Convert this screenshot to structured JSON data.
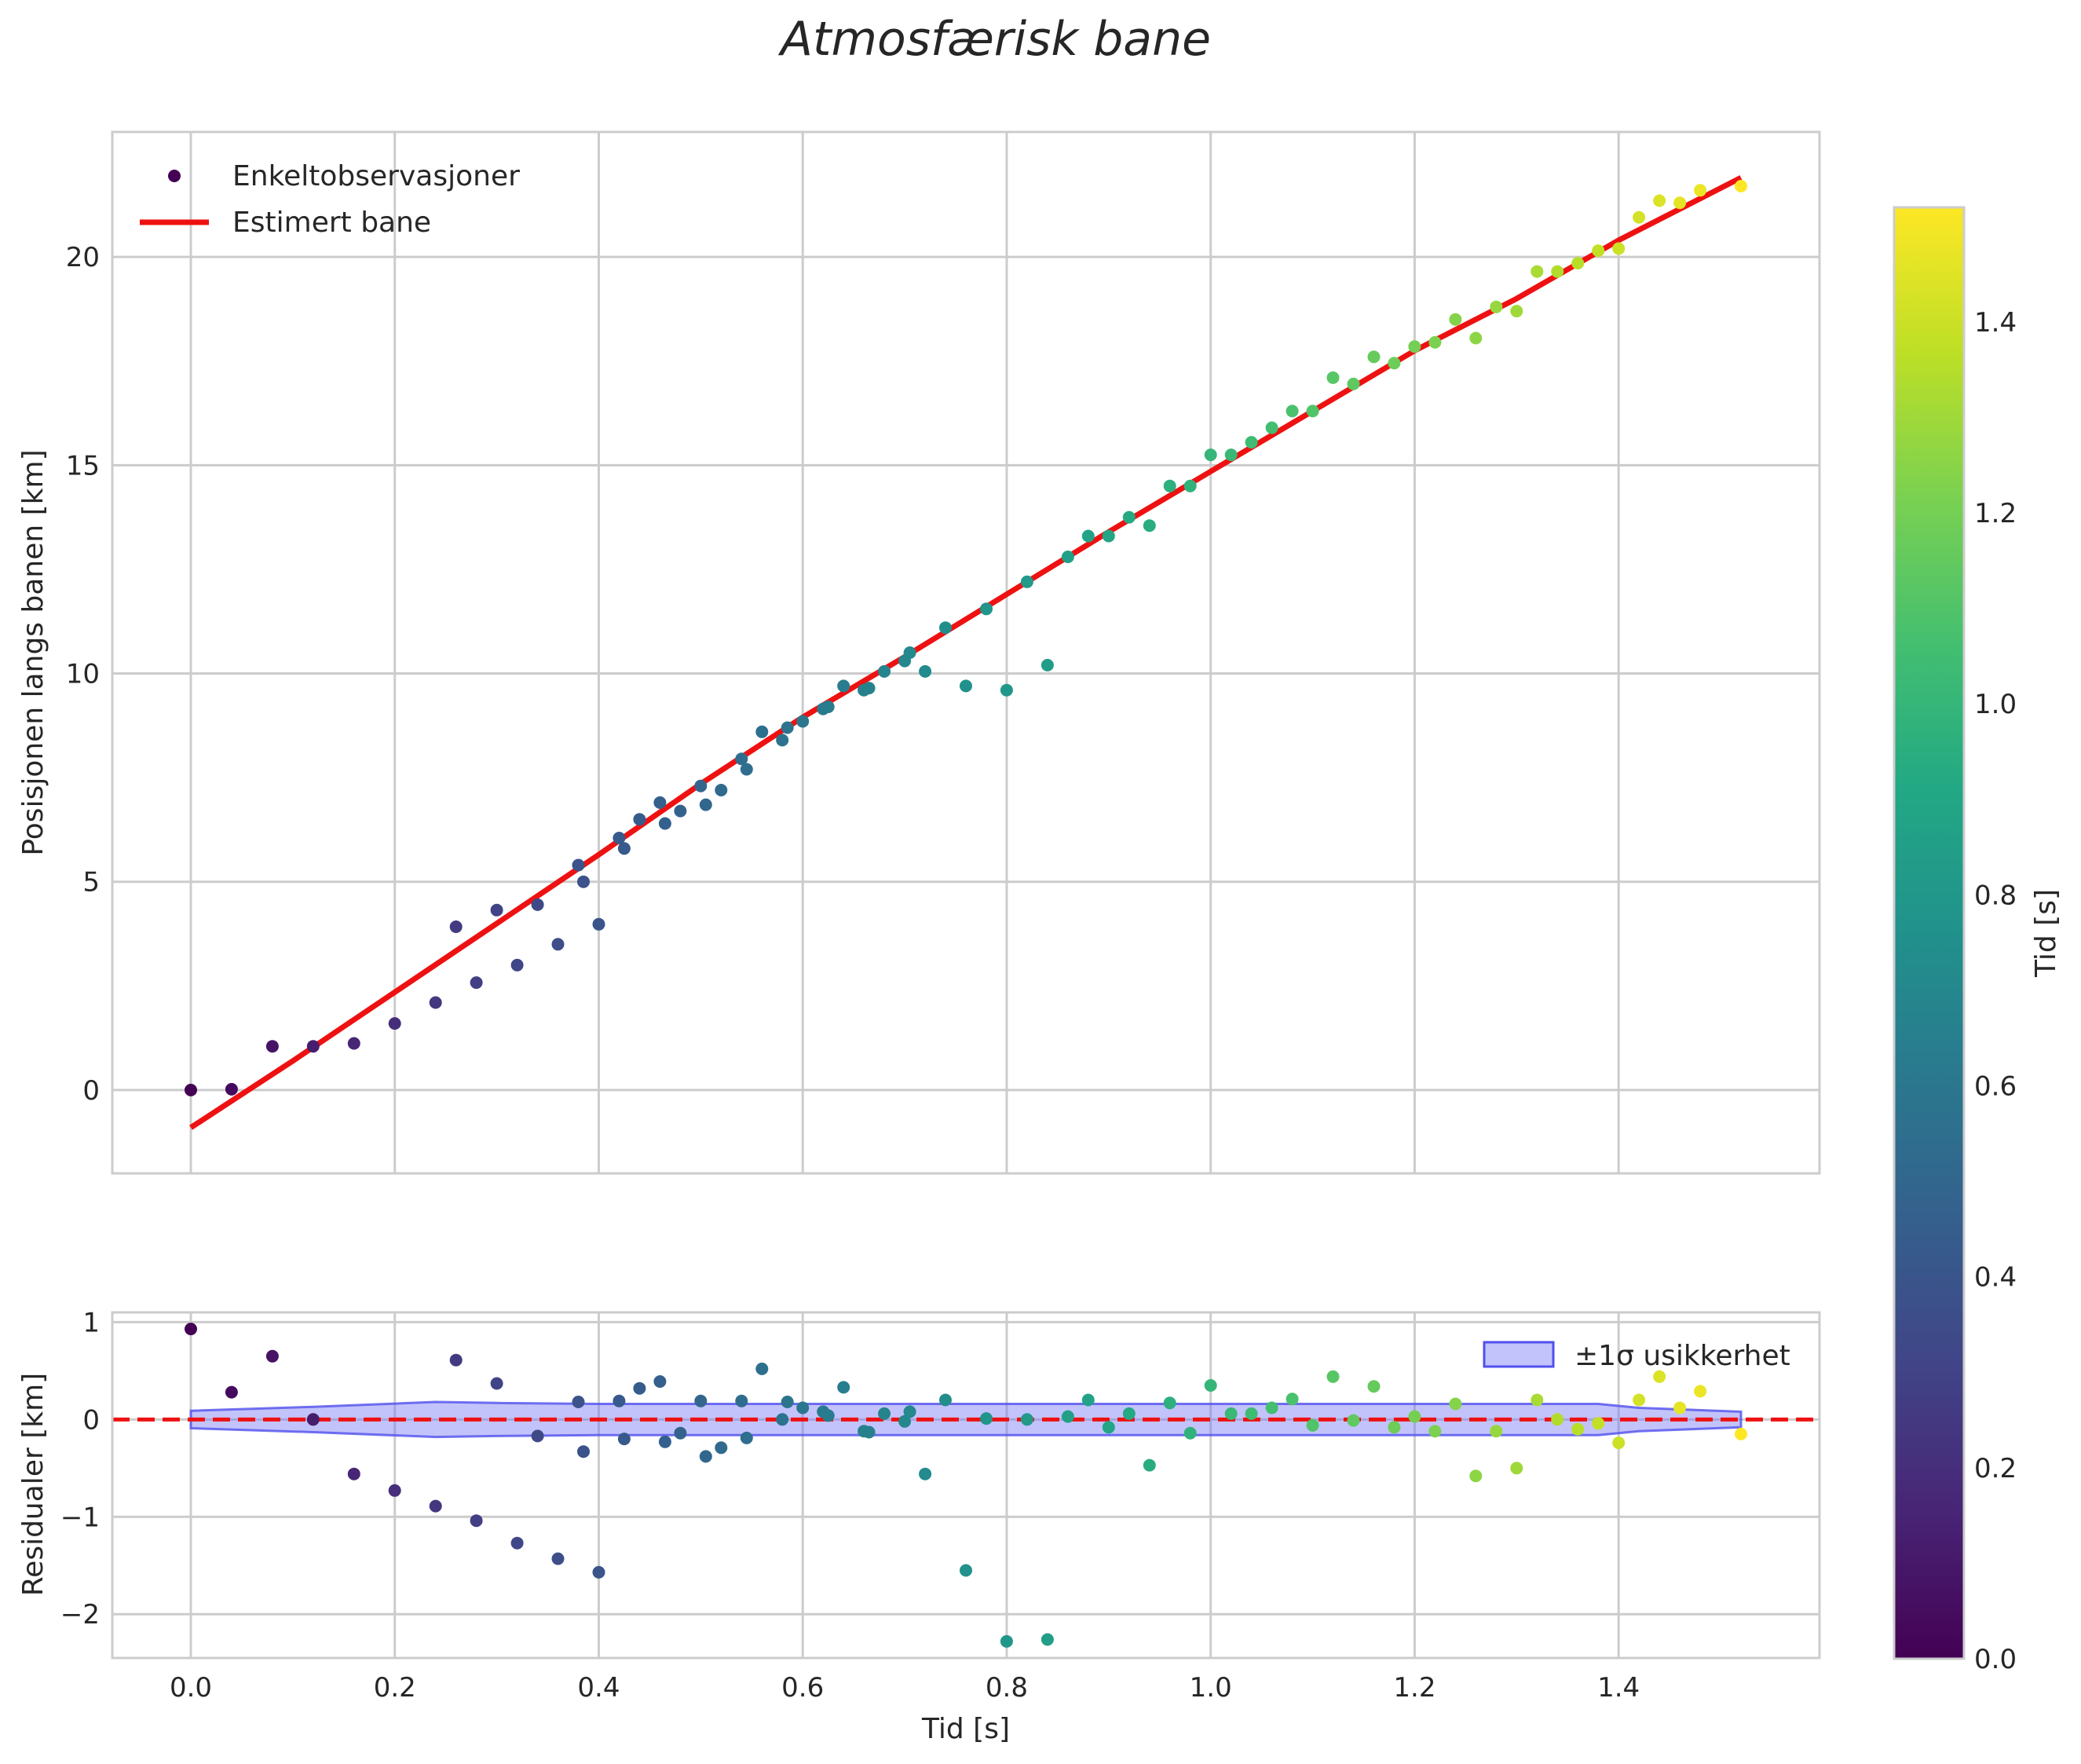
{
  "chart_data": {
    "title": "Atmosfærisk bane",
    "colorbar": {
      "label": "Tid [s]",
      "range": [
        0,
        1.52
      ],
      "ticks": [
        "0.0",
        "0.2",
        "0.4",
        "0.6",
        "0.8",
        "1.0",
        "1.2",
        "1.4"
      ]
    },
    "main": {
      "type": "scatter",
      "ylabel": "Posisjonen langs banen [km]",
      "xlim": [
        -0.077,
        1.597
      ],
      "ylim": [
        -2.0,
        23.0
      ],
      "xticks": [
        0.0,
        0.2,
        0.4,
        0.6,
        0.8,
        1.0,
        1.2,
        1.4
      ],
      "yticks": [
        0,
        5,
        10,
        15,
        20
      ],
      "ytick_labels": [
        "0",
        "5",
        "10",
        "15",
        "20"
      ],
      "legend": {
        "position": "top-left",
        "scatter_label": "Enkeltobservasjoner",
        "line_label": "Estimert bane"
      },
      "observations": {
        "x": [
          0.0,
          0.04,
          0.08,
          0.12,
          0.16,
          0.2,
          0.24,
          0.26,
          0.28,
          0.3,
          0.32,
          0.34,
          0.36,
          0.38,
          0.385,
          0.4,
          0.42,
          0.425,
          0.44,
          0.46,
          0.465,
          0.48,
          0.5,
          0.505,
          0.52,
          0.54,
          0.545,
          0.56,
          0.58,
          0.585,
          0.6,
          0.62,
          0.625,
          0.64,
          0.66,
          0.665,
          0.68,
          0.7,
          0.705,
          0.72,
          0.74,
          0.76,
          0.78,
          0.8,
          0.82,
          0.84,
          0.86,
          0.88,
          0.9,
          0.92,
          0.94,
          0.96,
          0.98,
          1.0,
          1.02,
          1.04,
          1.06,
          1.08,
          1.1,
          1.12,
          1.14,
          1.16,
          1.18,
          1.2,
          1.22,
          1.24,
          1.26,
          1.28,
          1.3,
          1.32,
          1.34,
          1.36,
          1.38,
          1.4,
          1.42,
          1.44,
          1.46,
          1.48,
          1.52
        ],
        "y": [
          0.0,
          0.02,
          1.05,
          1.05,
          1.12,
          1.6,
          2.1,
          3.92,
          2.58,
          4.32,
          3.0,
          4.45,
          3.5,
          5.4,
          5.0,
          3.98,
          6.05,
          5.8,
          6.5,
          6.9,
          6.4,
          6.7,
          7.3,
          6.85,
          7.2,
          7.95,
          7.7,
          8.6,
          8.4,
          8.7,
          8.85,
          9.15,
          9.2,
          9.7,
          9.6,
          9.65,
          10.05,
          10.3,
          10.5,
          10.05,
          11.1,
          9.7,
          11.55,
          9.6,
          12.2,
          10.2,
          12.8,
          13.3,
          13.3,
          13.75,
          13.55,
          14.5,
          14.5,
          15.25,
          15.25,
          15.55,
          15.9,
          16.3,
          16.3,
          17.1,
          16.95,
          17.6,
          17.45,
          17.85,
          17.95,
          18.5,
          18.05,
          18.8,
          18.7,
          19.65,
          19.65,
          19.85,
          20.15,
          20.2,
          20.95,
          21.35,
          21.3,
          21.6,
          21.7
        ]
      },
      "estimated_path": {
        "x": [
          0.0,
          0.1,
          0.2,
          0.3,
          0.4,
          0.5,
          0.6,
          0.7,
          0.8,
          0.9,
          1.0,
          1.1,
          1.2,
          1.3,
          1.4,
          1.52
        ],
        "y": [
          -0.9,
          0.7,
          2.35,
          4.0,
          5.65,
          7.35,
          8.95,
          10.4,
          11.9,
          13.4,
          14.85,
          16.3,
          17.75,
          19.0,
          20.4,
          21.9
        ]
      }
    },
    "residuals": {
      "type": "scatter",
      "xlabel": "Tid [s]",
      "ylabel": "Residualer [km]",
      "xlim": [
        -0.077,
        1.597
      ],
      "ylim": [
        -2.45,
        1.1
      ],
      "yticks": [
        -2,
        -1,
        0,
        1
      ],
      "ytick_labels": [
        "−2",
        "−1",
        "0",
        "1"
      ],
      "xtick_labels": [
        "0.0",
        "0.2",
        "0.4",
        "0.6",
        "0.8",
        "1.0",
        "1.2",
        "1.4"
      ],
      "legend": {
        "position": "top-right",
        "band_label": "±1σ usikkerhet"
      },
      "zero_line": 0,
      "uncertainty_band": {
        "x": [
          0.0,
          0.12,
          0.24,
          0.3,
          0.4,
          0.6,
          0.8,
          1.0,
          1.2,
          1.38,
          1.42,
          1.52
        ],
        "sigma": [
          0.09,
          0.13,
          0.18,
          0.17,
          0.16,
          0.16,
          0.16,
          0.16,
          0.16,
          0.16,
          0.12,
          0.08
        ]
      },
      "points": {
        "x": [
          0.0,
          0.04,
          0.08,
          0.12,
          0.16,
          0.2,
          0.24,
          0.26,
          0.28,
          0.3,
          0.32,
          0.34,
          0.36,
          0.38,
          0.385,
          0.4,
          0.42,
          0.425,
          0.44,
          0.46,
          0.465,
          0.48,
          0.5,
          0.505,
          0.52,
          0.54,
          0.545,
          0.56,
          0.58,
          0.585,
          0.6,
          0.62,
          0.625,
          0.64,
          0.66,
          0.665,
          0.68,
          0.7,
          0.705,
          0.72,
          0.74,
          0.76,
          0.78,
          0.8,
          0.82,
          0.84,
          0.86,
          0.88,
          0.9,
          0.92,
          0.94,
          0.96,
          0.98,
          1.0,
          1.02,
          1.04,
          1.06,
          1.08,
          1.1,
          1.12,
          1.14,
          1.16,
          1.18,
          1.2,
          1.22,
          1.24,
          1.26,
          1.28,
          1.3,
          1.32,
          1.34,
          1.36,
          1.38,
          1.4,
          1.42,
          1.44,
          1.46,
          1.48,
          1.52
        ],
        "r": [
          0.93,
          0.28,
          0.65,
          0.0,
          -0.56,
          -0.73,
          -0.89,
          0.61,
          -1.04,
          0.37,
          -1.27,
          -0.17,
          -1.43,
          0.18,
          -0.33,
          -1.57,
          0.19,
          -0.2,
          0.32,
          0.39,
          -0.23,
          -0.14,
          0.19,
          -0.38,
          -0.29,
          0.19,
          -0.19,
          0.52,
          0.0,
          0.18,
          0.12,
          0.08,
          0.04,
          0.33,
          -0.12,
          -0.13,
          0.06,
          -0.02,
          0.08,
          -0.56,
          0.2,
          -1.55,
          0.01,
          -2.28,
          0.0,
          -2.26,
          0.03,
          0.2,
          -0.08,
          0.06,
          -0.47,
          0.17,
          -0.14,
          0.35,
          0.06,
          0.06,
          0.12,
          0.21,
          -0.06,
          0.44,
          -0.01,
          0.34,
          -0.08,
          0.03,
          -0.12,
          0.16,
          -0.58,
          -0.12,
          -0.5,
          0.2,
          0.0,
          -0.1,
          -0.04,
          -0.24,
          0.2,
          0.44,
          0.12,
          0.29,
          -0.15
        ]
      }
    }
  }
}
